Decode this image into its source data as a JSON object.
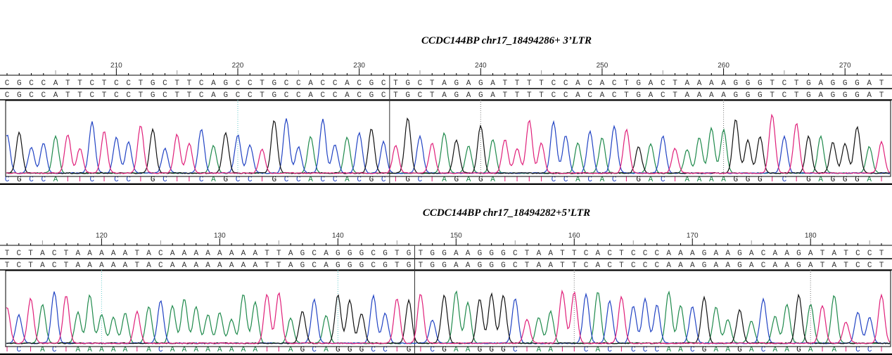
{
  "panels": [
    {
      "title": "CCDC144BP chr17_18494286+ 3’LTR",
      "start": 201,
      "ruler_labels": [
        "210",
        "220",
        "230",
        "240",
        "250",
        "260",
        "270"
      ],
      "reference": "CGCCATTCTCCTGCTTCAGCCTGCCACCACGCTGCTAGAGATTTTCCACACTGACTAAAAGGGTCTGAGGGAT",
      "consensus": "CGCCATTCTCCTGCTTCAGCCTGCCACCACGCTGCTAGAGATTTTCCACACTGACTAAAAGGGTCTGAGGGAT",
      "basecalls": "CGCCATTCTCCTGCTTCAGCCTGCCACCACGCTGCTAGAGATTTTCCACACTGACTAAAAGGGTCTGAGGGAT",
      "junction_after": 32
    },
    {
      "title": "CCDC144BP  chr17_18494282+5’LTR",
      "start": 112,
      "ruler_labels": [
        "120",
        "130",
        "140",
        "150",
        "160",
        "170",
        "180"
      ],
      "reference": "TCTACTAAAAATACAAAAAAAATTAGCAGGGCGTGTGGAAGGGCTAATTCACTCCCAAAGAAGACAAGATATCCT",
      "consensus": "TCTACTAAAAATACAAAAAAAATTAGCAGGGCGTGTGGAAGGGCTAATTCACTCCCAAAGAAGACAAGATATCCT",
      "basecalls": "TCTACTAAAAATACAAAAAAAATTAGCAGGGCCTGTCGAAGGGCTAATTCACTCCCAACGAAGACAAGATATCCT",
      "junction_after": 35
    }
  ],
  "base_colors": {
    "A": "#1f8a4c",
    "C": "#2244c4",
    "G": "#111111",
    "T": "#e0207a"
  }
}
